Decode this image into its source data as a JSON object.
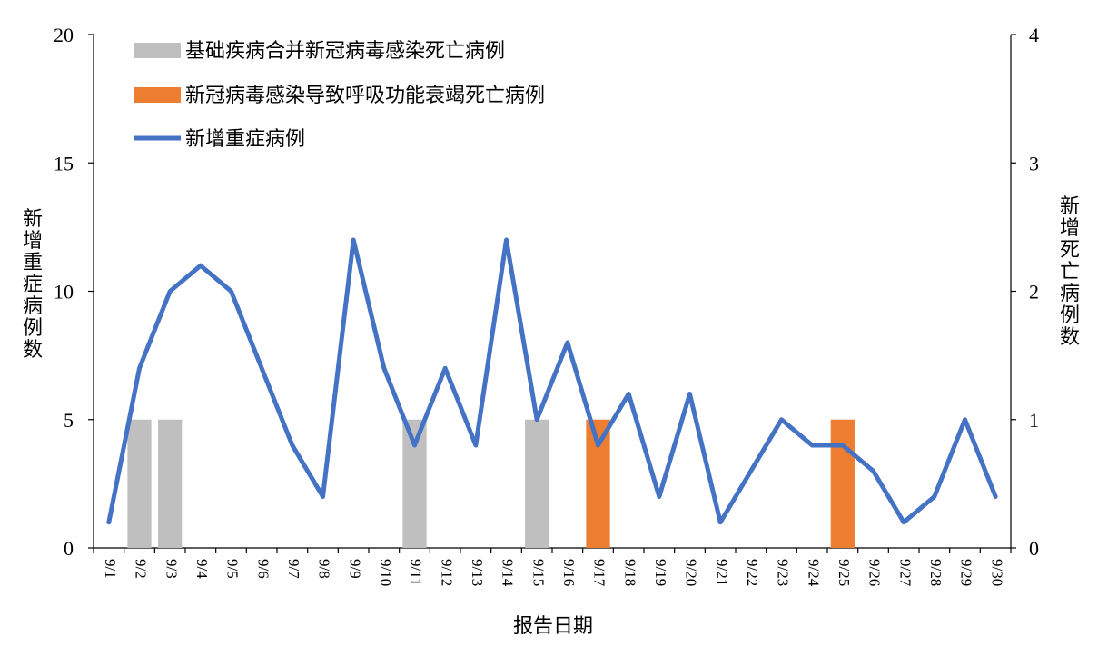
{
  "chart_data": {
    "type": "bar+line",
    "xlabel": "报告日期",
    "y_left_label": "新增重症病例数",
    "y_right_label": "新增死亡病例数",
    "y_left_lim": [
      0,
      20
    ],
    "y_left_ticks": [
      "0",
      "5",
      "10",
      "15",
      "20"
    ],
    "y_right_lim": [
      0,
      4
    ],
    "y_right_ticks": [
      "0",
      "1",
      "2",
      "3",
      "4"
    ],
    "legend_position": "top-left",
    "categories": [
      "9/1",
      "9/2",
      "9/3",
      "9/4",
      "9/5",
      "9/6",
      "9/7",
      "9/8",
      "9/9",
      "9/10",
      "9/11",
      "9/12",
      "9/13",
      "9/14",
      "9/15",
      "9/16",
      "9/17",
      "9/18",
      "9/19",
      "9/20",
      "9/21",
      "9/22",
      "9/23",
      "9/24",
      "9/25",
      "9/26",
      "9/27",
      "9/28",
      "9/29",
      "9/30"
    ],
    "series": [
      {
        "name": "基础疾病合并新冠病毒感染死亡病例",
        "type": "bar",
        "axis": "right",
        "color": "#bfbfbf",
        "values": [
          0,
          1,
          1,
          0,
          0,
          0,
          0,
          0,
          0,
          0,
          1,
          0,
          0,
          0,
          1,
          0,
          0,
          0,
          0,
          0,
          0,
          0,
          0,
          0,
          0,
          0,
          0,
          0,
          0,
          0
        ]
      },
      {
        "name": "新冠病毒感染导致呼吸功能衰竭死亡病例",
        "type": "bar",
        "axis": "right",
        "color": "#ed7d31",
        "values": [
          0,
          0,
          0,
          0,
          0,
          0,
          0,
          0,
          0,
          0,
          0,
          0,
          0,
          0,
          0,
          0,
          1,
          0,
          0,
          0,
          0,
          0,
          0,
          0,
          1,
          0,
          0,
          0,
          0,
          0
        ]
      },
      {
        "name": "新增重症病例",
        "type": "line",
        "axis": "left",
        "color": "#4472c4",
        "values": [
          1,
          7,
          10,
          11,
          10,
          7,
          4,
          2,
          12,
          7,
          4,
          7,
          4,
          12,
          5,
          8,
          4,
          6,
          2,
          6,
          1,
          3,
          5,
          4,
          4,
          3,
          1,
          2,
          5,
          2
        ]
      }
    ]
  }
}
